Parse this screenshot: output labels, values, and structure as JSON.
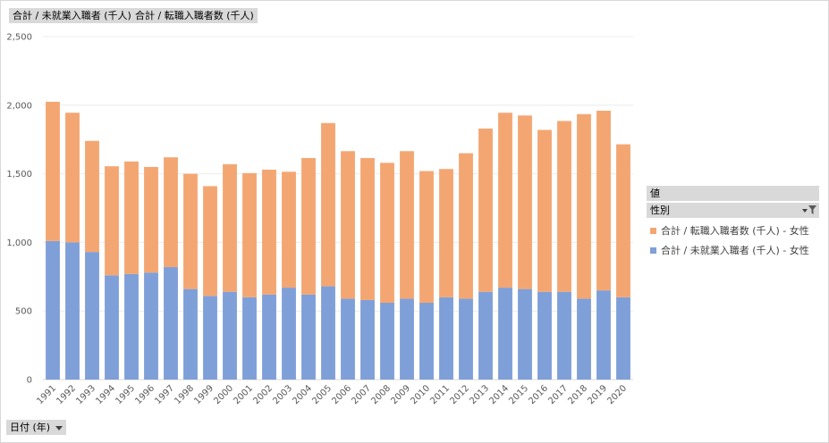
{
  "top_fields": {
    "field1": "合計 / 未就業入職者 (千人)",
    "field2": "合計 / 転職入職者数 (千人)"
  },
  "legend": {
    "header": "値",
    "subheader": "性別",
    "items": [
      {
        "label": "合計 / 転職入職者数 (千人) - 女性",
        "color": "#f4a672"
      },
      {
        "label": "合計 / 未就業入職者 (千人) - 女性",
        "color": "#7f9fd8"
      }
    ]
  },
  "axis_field": {
    "label": "日付 (年)"
  },
  "chart_data": {
    "type": "bar",
    "stacked": true,
    "categories": [
      "1991",
      "1992",
      "1993",
      "1994",
      "1995",
      "1996",
      "1997",
      "1998",
      "1999",
      "2000",
      "2001",
      "2002",
      "2003",
      "2004",
      "2005",
      "2006",
      "2007",
      "2008",
      "2009",
      "2010",
      "2011",
      "2012",
      "2013",
      "2014",
      "2015",
      "2016",
      "2017",
      "2018",
      "2019",
      "2020"
    ],
    "series": [
      {
        "name": "合計 / 未就業入職者 (千人) - 女性",
        "color": "#7f9fd8",
        "values": [
          1010,
          1000,
          930,
          760,
          770,
          780,
          820,
          660,
          610,
          640,
          600,
          620,
          670,
          620,
          680,
          590,
          580,
          560,
          590,
          560,
          600,
          590,
          640,
          670,
          660,
          640,
          640,
          590,
          650,
          600
        ]
      },
      {
        "name": "合計 / 転職入職者数 (千人) - 女性",
        "color": "#f4a672",
        "values": [
          1015,
          945,
          810,
          795,
          820,
          770,
          800,
          840,
          800,
          930,
          905,
          910,
          845,
          995,
          1190,
          1075,
          1035,
          1020,
          1075,
          960,
          935,
          1060,
          1190,
          1275,
          1265,
          1180,
          1245,
          1345,
          1310,
          1115
        ]
      }
    ],
    "y_ticks": [
      "0",
      "500",
      "1,000",
      "1,500",
      "2,000",
      "2,500"
    ],
    "ylim": [
      0,
      2500
    ],
    "grid": true,
    "legend_position": "right"
  }
}
